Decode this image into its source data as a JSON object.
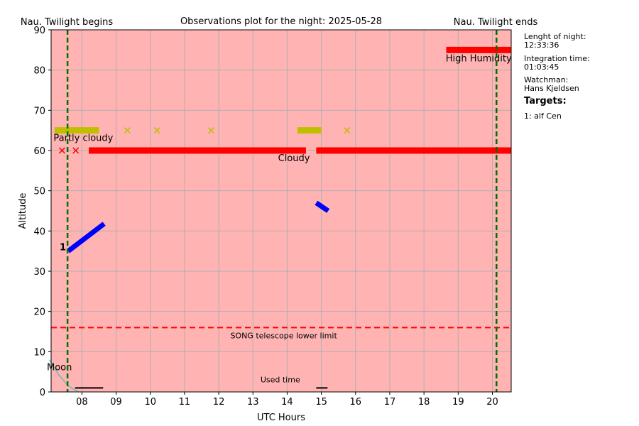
{
  "chart_data": {
    "type": "scatter",
    "title": "Observations plot for the night: 2025-05-28",
    "xlabel": "UTC Hours",
    "ylabel": "Altitude",
    "xlim": [
      7.1,
      20.55
    ],
    "ylim": [
      0,
      90
    ],
    "x_ticks": [
      8,
      9,
      10,
      11,
      12,
      13,
      14,
      15,
      16,
      17,
      18,
      19,
      20
    ],
    "x_tick_labels": [
      "08",
      "09",
      "10",
      "11",
      "12",
      "13",
      "14",
      "15",
      "16",
      "17",
      "18",
      "19",
      "20"
    ],
    "y_ticks": [
      0,
      10,
      20,
      30,
      40,
      50,
      60,
      70,
      80,
      90
    ],
    "grid": true,
    "background_color": "#ffb3b3",
    "twilight": {
      "begin_label": "Nau. Twilight begins",
      "end_label": "Nau. Twilight ends",
      "begin_x": 7.58,
      "end_x": 20.12,
      "color": "#007000"
    },
    "telescope_limit": {
      "label": "SONG telescope lower limit",
      "y": 16,
      "color": "#ff0000"
    },
    "weather": [
      {
        "label": "Partly cloudy",
        "color": "#bfbf00",
        "y": 65,
        "segments": [
          [
            7.2,
            8.5
          ],
          [
            14.3,
            15.0
          ]
        ],
        "points": [
          9.33,
          10.2,
          11.78,
          15.75
        ]
      },
      {
        "label": "Cloudy",
        "color": "#ff0000",
        "y": 60,
        "segments": [
          [
            8.2,
            14.55
          ],
          [
            14.85,
            20.55
          ]
        ],
        "points": [
          7.42,
          7.82
        ]
      },
      {
        "label": "High Humidity",
        "color": "#ff0000",
        "y": 85,
        "segments": [
          [
            18.65,
            20.55
          ]
        ],
        "points": []
      }
    ],
    "target_tracks": [
      {
        "label": "1",
        "color": "#0000ff",
        "segments": [
          {
            "x": [
              7.6,
              8.65
            ],
            "y": [
              35,
              41.8
            ]
          },
          {
            "x": [
              14.85,
              15.2
            ],
            "y": [
              47,
              45
            ]
          }
        ]
      }
    ],
    "moon": {
      "label": "Moon",
      "color": "#40c0c0",
      "x": [
        7.05,
        7.3,
        7.6,
        7.9
      ],
      "y": [
        8,
        4.5,
        1.5,
        0
      ]
    },
    "used_time": {
      "label": "Used time",
      "color": "#000000",
      "y": 1,
      "segments": [
        [
          7.8,
          8.62
        ],
        [
          14.85,
          15.18
        ]
      ]
    }
  },
  "info": {
    "night_length_label": "Lenght of night:",
    "night_length_value": "12:33:36",
    "integration_label": "Integration time:",
    "integration_value": "01:03:45",
    "watchman_label": "Watchman:",
    "watchman_value": "Hans Kjeldsen",
    "targets_heading": "Targets:",
    "targets": [
      "1: alf Cen"
    ]
  }
}
